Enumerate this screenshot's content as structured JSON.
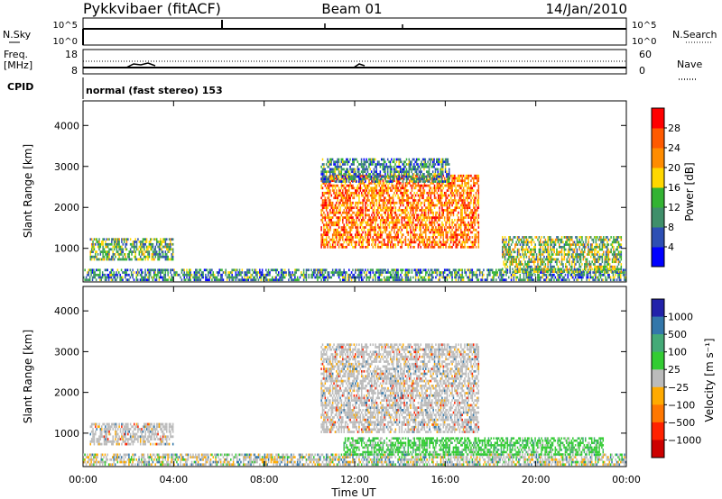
{
  "header": {
    "station": "Pykkvibaer (fitACF)",
    "beam": "Beam 01",
    "date": "14/Jan/2010"
  },
  "panels": {
    "nsky": {
      "label": "N.Sky",
      "ticks": [
        "10^5",
        "10^0"
      ],
      "right_label": "N.Search",
      "right_ticks": [
        "10^5",
        "10^0"
      ]
    },
    "freq": {
      "label": "Freq.",
      "unit": "[MHz]",
      "ticks": [
        "18",
        "8"
      ],
      "right_label": "Nave",
      "right_ticks": [
        "60",
        "0"
      ]
    },
    "cpid": {
      "label": "CPID",
      "text": "normal (fast stereo) 153"
    }
  },
  "colors": {
    "power": [
      "#0000ff",
      "#2d4fb4",
      "#3f8f6a",
      "#33b333",
      "#ffd700",
      "#ff8c00",
      "#ff5a00",
      "#ff0000"
    ],
    "velocity": [
      "#2222aa",
      "#3377aa",
      "#44aa77",
      "#33cc33",
      "#bbbbbb",
      "#ffaa00",
      "#ff7700",
      "#ff2200",
      "#cc0000"
    ]
  },
  "chart_data": [
    {
      "type": "heatmap",
      "quantity": "power",
      "ylabel": "Slant Range [km]",
      "ylim": [
        180,
        4600
      ],
      "xlim": [
        0,
        24
      ],
      "yticks": [
        "1000",
        "2000",
        "3000",
        "4000"
      ],
      "colorbar": {
        "label": "Power [dB]",
        "range": [
          0,
          32
        ],
        "ticks": [
          "4",
          "8",
          "12",
          "16",
          "20",
          "24",
          "28"
        ]
      },
      "regions": [
        {
          "name": "near-range-clutter",
          "t0": 0.0,
          "t1": 24.0,
          "r0": 200,
          "r1": 500,
          "level": 0.3
        },
        {
          "name": "early-morning-band",
          "t0": 0.3,
          "t1": 4.0,
          "r0": 700,
          "r1": 1250,
          "level": 0.4
        },
        {
          "name": "main-evening-echo",
          "t0": 10.5,
          "t1": 17.5,
          "r0": 1000,
          "r1": 2800,
          "level": 0.75
        },
        {
          "name": "upper-band",
          "t0": 10.5,
          "t1": 16.2,
          "r0": 2600,
          "r1": 3200,
          "level": 0.3
        },
        {
          "name": "late-echo",
          "t0": 18.5,
          "t1": 23.8,
          "r0": 400,
          "r1": 1300,
          "level": 0.45
        }
      ]
    },
    {
      "type": "heatmap",
      "quantity": "velocity",
      "ylabel": "Slant Range [km]",
      "ylim": [
        180,
        4600
      ],
      "xlim": [
        0,
        24
      ],
      "yticks": [
        "1000",
        "2000",
        "3000",
        "4000"
      ],
      "xticks": [
        "00:00",
        "04:00",
        "08:00",
        "12:00",
        "16:00",
        "20:00",
        "00:00"
      ],
      "xlabel": "Time UT",
      "colorbar": {
        "label": "Velocity [m s⁻¹]",
        "ticks": [
          "1000",
          "500",
          "100",
          "25",
          "−25",
          "−100",
          "−500",
          "−1000"
        ]
      },
      "regions": [
        {
          "name": "near-range-clutter",
          "t0": 0.0,
          "t1": 24.0,
          "r0": 200,
          "r1": 500,
          "v": 25
        },
        {
          "name": "early-morning-band",
          "t0": 0.3,
          "t1": 4.0,
          "r0": 700,
          "r1": 1250,
          "v": 0
        },
        {
          "name": "main-evening-echo",
          "t0": 10.5,
          "t1": 17.5,
          "r0": 1000,
          "r1": 3200,
          "v": 0
        },
        {
          "name": "low-range-streak",
          "t0": 11.5,
          "t1": 23.0,
          "r0": 450,
          "r1": 900,
          "v": 100
        }
      ]
    }
  ]
}
